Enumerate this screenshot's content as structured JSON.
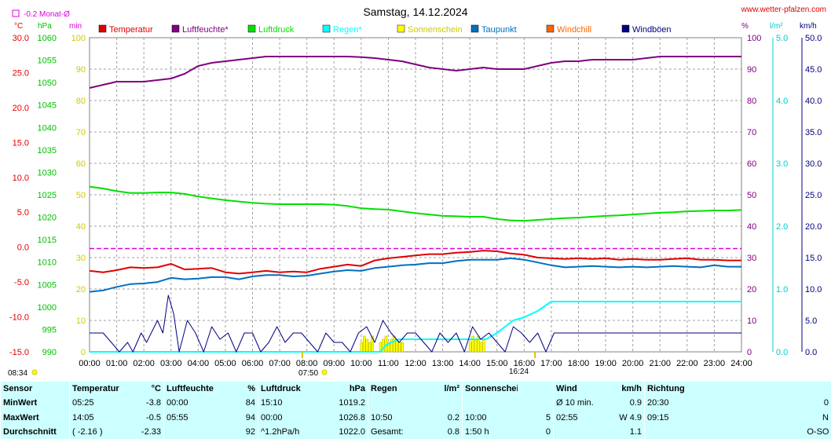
{
  "header": {
    "title": "Samstag, 14.12.2024",
    "site": "www.wetter-pfalzen.com",
    "monthly_avg": "-0.2 Monat-Ø",
    "unit_left": [
      "°C",
      "hPa",
      "min"
    ],
    "unit_right": [
      "%",
      "l/m²",
      "km/h"
    ]
  },
  "legend": [
    {
      "name": "Temperatur",
      "color": "#e00000"
    },
    {
      "name": "Luftfeuchte*",
      "color": "#800080"
    },
    {
      "name": "Luftdruck",
      "color": "#00e000"
    },
    {
      "name": "Regen*",
      "color": "#00ffff"
    },
    {
      "name": "Sonnenschein",
      "color": "#ffff00"
    },
    {
      "name": "Taupunkt",
      "color": "#0070c0"
    },
    {
      "name": "Windchill",
      "color": "#ff6600"
    },
    {
      "name": "Windböen",
      "color": "#000080"
    }
  ],
  "markers": {
    "left_time": "08:34",
    "sunrise": "07:50",
    "sunset": "16:24"
  },
  "chart_data": {
    "type": "line",
    "title": "Samstag, 14.12.2024",
    "x_ticks": [
      "00:00",
      "01:00",
      "02:00",
      "03:00",
      "04:00",
      "05:00",
      "06:00",
      "07:00",
      "08:00",
      "09:00",
      "10:00",
      "11:00",
      "12:00",
      "13:00",
      "14:00",
      "15:00",
      "16:00",
      "17:00",
      "18:00",
      "19:00",
      "20:00",
      "21:00",
      "22:00",
      "23:00",
      "24:00"
    ],
    "xlim": [
      0,
      24
    ],
    "axes": {
      "temperature_c": {
        "ylim": [
          -15,
          30
        ],
        "ticks": [
          "-15.0",
          "-10.0",
          "-5.0",
          "0.0",
          "5.0",
          "10.0",
          "15.0",
          "20.0",
          "25.0",
          "30.0"
        ],
        "color": "#e00000"
      },
      "pressure_hpa": {
        "ylim": [
          990,
          1060
        ],
        "ticks": [
          "990",
          "995",
          "1000",
          "1005",
          "1010",
          "1015",
          "1020",
          "1025",
          "1030",
          "1035",
          "1040",
          "1045",
          "1050",
          "1055",
          "1060"
        ],
        "color": "#00c000"
      },
      "sunshine_min": {
        "ylim": [
          0,
          100
        ],
        "ticks": [
          "0",
          "10",
          "20",
          "30",
          "40",
          "50",
          "60",
          "70",
          "80",
          "90",
          "100"
        ],
        "color": "#cccc00"
      },
      "humidity_pct": {
        "ylim": [
          0,
          100
        ],
        "ticks": [
          "0",
          "10",
          "20",
          "30",
          "40",
          "50",
          "60",
          "70",
          "80",
          "90",
          "100"
        ],
        "color": "#800080"
      },
      "rain_lm2": {
        "ylim": [
          0,
          5
        ],
        "ticks": [
          "0.0",
          "1.0",
          "2.0",
          "3.0",
          "4.0",
          "5.0"
        ],
        "color": "#00cccc"
      },
      "wind_kmh": {
        "ylim": [
          0,
          50
        ],
        "ticks": [
          "0.0",
          "5.0",
          "10.0",
          "15.0",
          "20.0",
          "25.0",
          "30.0",
          "35.0",
          "40.0",
          "45.0",
          "50.0"
        ],
        "color": "#000080"
      }
    },
    "monthly_avg_temp": -0.2,
    "series": [
      {
        "name": "Temperatur",
        "axis": "temperature_c",
        "color": "#e00000",
        "x": [
          0,
          0.5,
          1,
          1.5,
          2,
          2.5,
          3,
          3.5,
          4,
          4.5,
          5,
          5.5,
          6,
          6.5,
          7,
          7.5,
          8,
          8.5,
          9,
          9.5,
          10,
          10.5,
          11,
          11.5,
          12,
          12.5,
          13,
          13.5,
          14,
          14.5,
          15,
          15.5,
          16,
          16.5,
          17,
          17.5,
          18,
          18.5,
          19,
          19.5,
          20,
          20.5,
          21,
          21.5,
          22,
          22.5,
          23,
          23.5,
          24
        ],
        "y": [
          -3.4,
          -3.6,
          -3.3,
          -2.9,
          -3.0,
          -2.9,
          -2.4,
          -3.2,
          -3.1,
          -3.0,
          -3.6,
          -3.8,
          -3.6,
          -3.4,
          -3.6,
          -3.5,
          -3.6,
          -3.1,
          -2.8,
          -2.5,
          -2.7,
          -1.9,
          -1.6,
          -1.4,
          -1.2,
          -1.0,
          -1.0,
          -0.8,
          -0.7,
          -0.5,
          -0.6,
          -0.9,
          -1.1,
          -1.5,
          -1.6,
          -1.7,
          -1.6,
          -1.7,
          -1.6,
          -1.8,
          -1.7,
          -1.8,
          -1.8,
          -1.7,
          -1.6,
          -1.8,
          -1.8,
          -1.9,
          -1.9
        ]
      },
      {
        "name": "Taupunkt",
        "axis": "temperature_c",
        "color": "#0070c0",
        "x": [
          0,
          0.5,
          1,
          1.5,
          2,
          2.5,
          3,
          3.5,
          4,
          4.5,
          5,
          5.5,
          6,
          6.5,
          7,
          7.5,
          8,
          8.5,
          9,
          9.5,
          10,
          10.5,
          11,
          11.5,
          12,
          12.5,
          13,
          13.5,
          14,
          14.5,
          15,
          15.5,
          16,
          16.5,
          17,
          17.5,
          18,
          18.5,
          19,
          19.5,
          20,
          20.5,
          21,
          21.5,
          22,
          22.5,
          23,
          23.5,
          24
        ],
        "y": [
          -6.4,
          -6.2,
          -5.7,
          -5.3,
          -5.2,
          -5.0,
          -4.4,
          -4.6,
          -4.5,
          -4.3,
          -4.3,
          -4.6,
          -4.2,
          -4.0,
          -4.0,
          -4.2,
          -4.1,
          -3.8,
          -3.5,
          -3.3,
          -3.4,
          -3.0,
          -2.8,
          -2.6,
          -2.5,
          -2.3,
          -2.3,
          -2.0,
          -1.8,
          -1.8,
          -1.8,
          -1.6,
          -1.8,
          -2.2,
          -2.6,
          -2.9,
          -2.8,
          -2.7,
          -2.8,
          -2.9,
          -2.8,
          -2.9,
          -2.8,
          -2.7,
          -2.8,
          -2.9,
          -2.6,
          -2.8,
          -2.8
        ]
      },
      {
        "name": "Luftfeuchte",
        "axis": "humidity_pct",
        "color": "#800080",
        "x": [
          0,
          0.5,
          1,
          1.5,
          2,
          2.5,
          3,
          3.5,
          4,
          4.5,
          5,
          5.5,
          6,
          6.5,
          7,
          7.5,
          8,
          8.5,
          9,
          9.5,
          10,
          10.5,
          11,
          11.5,
          12,
          12.5,
          13,
          13.5,
          14,
          14.5,
          15,
          15.5,
          16,
          16.5,
          17,
          17.5,
          18,
          18.5,
          19,
          19.5,
          20,
          20.5,
          21,
          21.5,
          22,
          22.5,
          23,
          23.5,
          24
        ],
        "y": [
          84,
          85,
          86,
          86,
          86,
          86.5,
          87,
          88.5,
          91,
          92,
          92.5,
          93,
          93.5,
          94,
          94,
          94,
          94,
          94,
          94,
          94,
          93.8,
          93.5,
          93,
          92.5,
          91.5,
          90.5,
          90,
          89.5,
          90,
          90.5,
          90,
          90,
          90,
          91,
          92,
          92.5,
          92.5,
          93,
          93,
          93,
          93,
          93.5,
          94,
          94,
          94,
          94,
          94,
          94,
          94
        ]
      },
      {
        "name": "Luftdruck",
        "axis": "pressure_hpa",
        "color": "#00e000",
        "x": [
          0,
          0.5,
          1,
          1.5,
          2,
          2.5,
          3,
          3.5,
          4,
          4.5,
          5,
          5.5,
          6,
          6.5,
          7,
          7.5,
          8,
          8.5,
          9,
          9.5,
          10,
          10.5,
          11,
          11.5,
          12,
          12.5,
          13,
          13.5,
          14,
          14.5,
          15,
          15.5,
          16,
          16.5,
          17,
          17.5,
          18,
          18.5,
          19,
          19.5,
          20,
          20.5,
          21,
          21.5,
          22,
          22.5,
          23,
          23.5,
          24
        ],
        "y": [
          1026.8,
          1026.4,
          1025.8,
          1025.4,
          1025.4,
          1025.5,
          1025.5,
          1025.2,
          1024.6,
          1024.2,
          1023.8,
          1023.5,
          1023.2,
          1023.0,
          1022.9,
          1022.9,
          1022.9,
          1022.9,
          1022.8,
          1022.5,
          1022.0,
          1021.8,
          1021.7,
          1021.3,
          1020.9,
          1020.6,
          1020.3,
          1020.2,
          1020.1,
          1020.1,
          1019.6,
          1019.3,
          1019.2,
          1019.4,
          1019.6,
          1019.8,
          1019.9,
          1020.1,
          1020.3,
          1020.4,
          1020.6,
          1020.8,
          1021.0,
          1021.1,
          1021.3,
          1021.4,
          1021.5,
          1021.5,
          1021.6
        ]
      },
      {
        "name": "Regen",
        "axis": "rain_lm2",
        "color": "#00ffff",
        "x": [
          0,
          10.7,
          10.9,
          11.1,
          11.4,
          11.7,
          12.0,
          14.6,
          15.0,
          15.3,
          15.6,
          16.0,
          16.5,
          17.0,
          24
        ],
        "y": [
          0,
          0,
          0.1,
          0.15,
          0.2,
          0.2,
          0.2,
          0.2,
          0.3,
          0.4,
          0.5,
          0.55,
          0.65,
          0.8,
          0.8
        ]
      },
      {
        "name": "Windböen",
        "axis": "wind_kmh",
        "color": "#000080",
        "x": [
          0,
          0.5,
          0.8,
          1.1,
          1.4,
          1.6,
          1.9,
          2.1,
          2.5,
          2.7,
          2.9,
          3.1,
          3.3,
          3.6,
          3.9,
          4.2,
          4.5,
          4.8,
          5.1,
          5.4,
          5.7,
          6.0,
          6.3,
          6.6,
          6.9,
          7.2,
          7.5,
          7.8,
          8.1,
          8.4,
          8.7,
          9.0,
          9.3,
          9.6,
          9.9,
          10.2,
          10.5,
          10.8,
          11.1,
          11.4,
          11.7,
          12.0,
          12.3,
          12.6,
          12.9,
          13.2,
          13.5,
          13.8,
          14.1,
          14.4,
          14.7,
          15.0,
          15.3,
          15.6,
          15.9,
          16.2,
          16.5,
          16.8,
          17.1,
          17.4,
          17.7,
          18.0,
          18.3,
          18.6,
          18.9,
          19.2,
          19.5,
          19.8,
          20.1,
          20.4,
          20.7,
          21.0,
          21.3,
          21.6,
          21.9,
          22.2,
          22.5,
          22.8,
          23.1,
          23.4,
          23.7,
          24
        ],
        "y": [
          3,
          3,
          1.5,
          0,
          1.5,
          0,
          3,
          1.5,
          5,
          3,
          9,
          6,
          0,
          5,
          3,
          0,
          4,
          2,
          3,
          0,
          3,
          3,
          0,
          1.5,
          4,
          1.5,
          3,
          3,
          1.5,
          0,
          3,
          1.5,
          1.5,
          0,
          3,
          4,
          1.5,
          5,
          3,
          1.5,
          3,
          3,
          1.5,
          0,
          3,
          1.5,
          3,
          0,
          4,
          2,
          3,
          1.5,
          0,
          4,
          3,
          1.5,
          3,
          0,
          3,
          3,
          3,
          3,
          3,
          3,
          3,
          3,
          3,
          3,
          3,
          3,
          3,
          3,
          3,
          3,
          3,
          3,
          3,
          3,
          3,
          3,
          3,
          3
        ]
      }
    ],
    "sunshine": {
      "axis": "sunshine_min",
      "color": "#ffff00",
      "x": [
        10.0,
        10.1,
        10.2,
        10.3,
        10.4,
        10.7,
        10.8,
        10.9,
        11.0,
        11.1,
        11.2,
        11.3,
        11.4,
        11.5,
        14.0,
        14.1,
        14.2,
        14.3,
        14.4,
        14.5
      ],
      "y": [
        3,
        5,
        4,
        3,
        5,
        3,
        4,
        5,
        3,
        4,
        5,
        4,
        3,
        3,
        3,
        5,
        4,
        5,
        3,
        4
      ]
    }
  },
  "stats": {
    "header": [
      "Sensor",
      "Temperatur",
      "°C",
      "Luftfeuchte",
      "%",
      "Luftdruck",
      "hPa",
      "Regen",
      "l/m²",
      "Sonnenschein min",
      "",
      "Wind",
      "km/h",
      "Richtung",
      ""
    ],
    "rows": [
      [
        "MinWert",
        "05:25",
        "-3.8",
        "00:00",
        "84",
        "15:10",
        "1019.2",
        "",
        "",
        "",
        "",
        "Ø 10 min.",
        "0.9",
        "20:30",
        "0"
      ],
      [
        "MaxWert",
        "14:05",
        "-0.5",
        "05:55",
        "94",
        "00:00",
        "1026.8",
        "10:50",
        "0.2",
        "10:00",
        "5",
        "02:55",
        "W 4.9",
        "09:15",
        "N"
      ],
      [
        "Durchschnitt",
        "( -2.16 )",
        "-2.33",
        "",
        "92",
        "^1.2hPa/h",
        "1022.0",
        "Gesamt:",
        "0.8",
        "1:50 h",
        "0",
        "",
        "1.1",
        "",
        "O-SO"
      ]
    ]
  }
}
